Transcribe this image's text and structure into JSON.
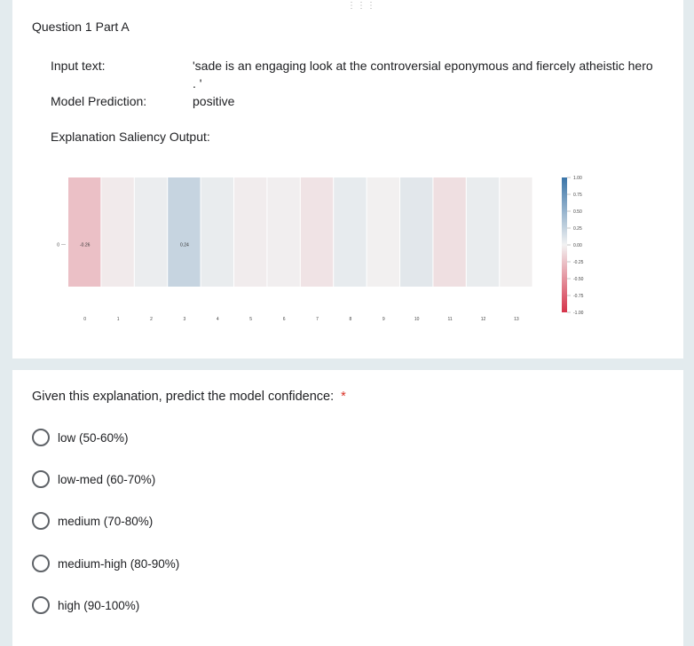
{
  "question": {
    "title": "Question 1 Part A",
    "input_label": "Input text:",
    "input_value": "'sade is an engaging look at the controversial eponymous and fiercely atheistic hero . '",
    "prediction_label": "Model Prediction:",
    "prediction_value": "positive",
    "explanation_label": "Explanation Saliency Output:"
  },
  "chart_data": {
    "type": "heatmap",
    "y_tick": "0",
    "x_ticks": [
      "0",
      "1",
      "2",
      "3",
      "4",
      "5",
      "6",
      "7",
      "8",
      "9",
      "10",
      "11",
      "12",
      "13"
    ],
    "values": [
      -0.26,
      -0.04,
      0.04,
      0.24,
      0.05,
      -0.03,
      -0.02,
      -0.08,
      0.06,
      -0.01,
      0.09,
      -0.1,
      0.05,
      -0.01
    ],
    "annotations": {
      "0": "-0.26",
      "3": "0.24"
    },
    "colorbar": {
      "ticks": [
        "1.00",
        "0.75",
        "0.50",
        "0.25",
        "0.00",
        "-0.25",
        "-0.50",
        "-0.75",
        "-1.00"
      ],
      "range": [
        -1,
        1
      ]
    },
    "colors": {
      "positive": "#3b75a8",
      "negative": "#d6334a",
      "neutral": "#f2f2f2"
    }
  },
  "confidence": {
    "question": "Given this explanation, predict the model confidence:",
    "required_mark": "*",
    "options": [
      "low (50-60%)",
      "low-med (60-70%)",
      "medium (70-80%)",
      "medium-high (80-90%)",
      "high (90-100%)"
    ]
  }
}
